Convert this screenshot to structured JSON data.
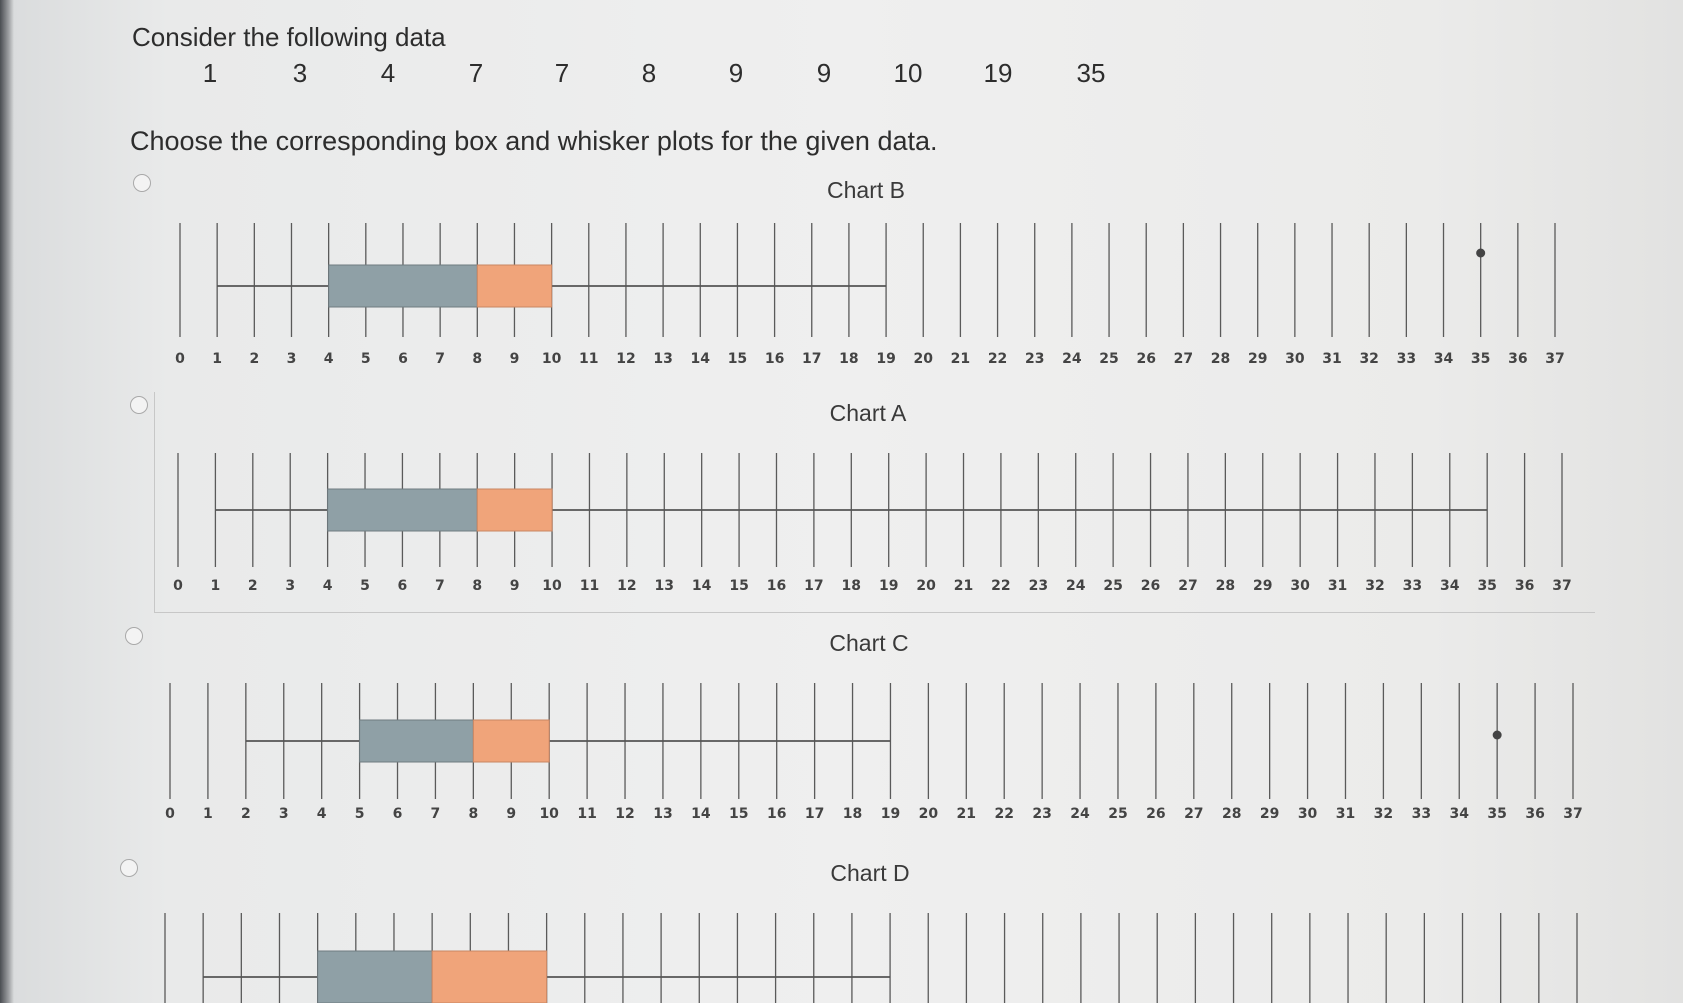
{
  "prompt": "Consider the following data",
  "data_values": [
    "1",
    "3",
    "4",
    "7",
    "7",
    "8",
    "9",
    "9",
    "10",
    "19",
    "35"
  ],
  "question": "Choose the corresponding  box and whisker plots for the given data.",
  "colors": {
    "box_left": "#8fa0a6",
    "box_right": "#f0a47a",
    "line": "#555555"
  },
  "chart_data": [
    {
      "type": "boxplot",
      "title": "Chart B",
      "axis_min": 0,
      "axis_max": 37,
      "tick_labels": [
        "0",
        "1",
        "2",
        "3",
        "4",
        "5",
        "6",
        "7",
        "8",
        "9",
        "10",
        "11",
        "12",
        "13",
        "14",
        "15",
        "16",
        "17",
        "18",
        "19",
        "20",
        "21",
        "22",
        "23",
        "24",
        "25",
        "26",
        "27",
        "28",
        "29",
        "30",
        "31",
        "32",
        "33",
        "34",
        "35",
        "36",
        "37"
      ],
      "whisker_low": 1,
      "q1": 4,
      "median": 8,
      "q3": 10,
      "whisker_high": 19,
      "outliers": [
        35
      ]
    },
    {
      "type": "boxplot",
      "title": "Chart A",
      "axis_min": 0,
      "axis_max": 37,
      "tick_labels": [
        "0",
        "1",
        "2",
        "3",
        "4",
        "5",
        "6",
        "7",
        "8",
        "9",
        "10",
        "11",
        "12",
        "13",
        "14",
        "15",
        "16",
        "17",
        "18",
        "19",
        "20",
        "21",
        "22",
        "23",
        "24",
        "25",
        "26",
        "27",
        "28",
        "29",
        "30",
        "31",
        "32",
        "33",
        "34",
        "35",
        "36",
        "37"
      ],
      "whisker_low": 1,
      "q1": 4,
      "median": 8,
      "q3": 10,
      "whisker_high": 35,
      "outliers": []
    },
    {
      "type": "boxplot",
      "title": "Chart C",
      "axis_min": 0,
      "axis_max": 37,
      "tick_labels": [
        "0",
        "1",
        "2",
        "3",
        "4",
        "5",
        "6",
        "7",
        "8",
        "9",
        "10",
        "11",
        "12",
        "13",
        "14",
        "15",
        "16",
        "17",
        "18",
        "19",
        "20",
        "21",
        "22",
        "23",
        "24",
        "25",
        "26",
        "27",
        "28",
        "29",
        "30",
        "31",
        "32",
        "33",
        "34",
        "35",
        "36",
        "37"
      ],
      "whisker_low": 2,
      "q1": 5,
      "median": 8,
      "q3": 10,
      "whisker_high": 19,
      "outliers": [
        35
      ]
    },
    {
      "type": "boxplot",
      "title": "Chart D",
      "axis_min": 0,
      "axis_max": 37,
      "tick_labels": [],
      "whisker_low": 1,
      "q1": 4,
      "median": 7,
      "q3": 10,
      "whisker_high": 19,
      "outliers": []
    }
  ]
}
